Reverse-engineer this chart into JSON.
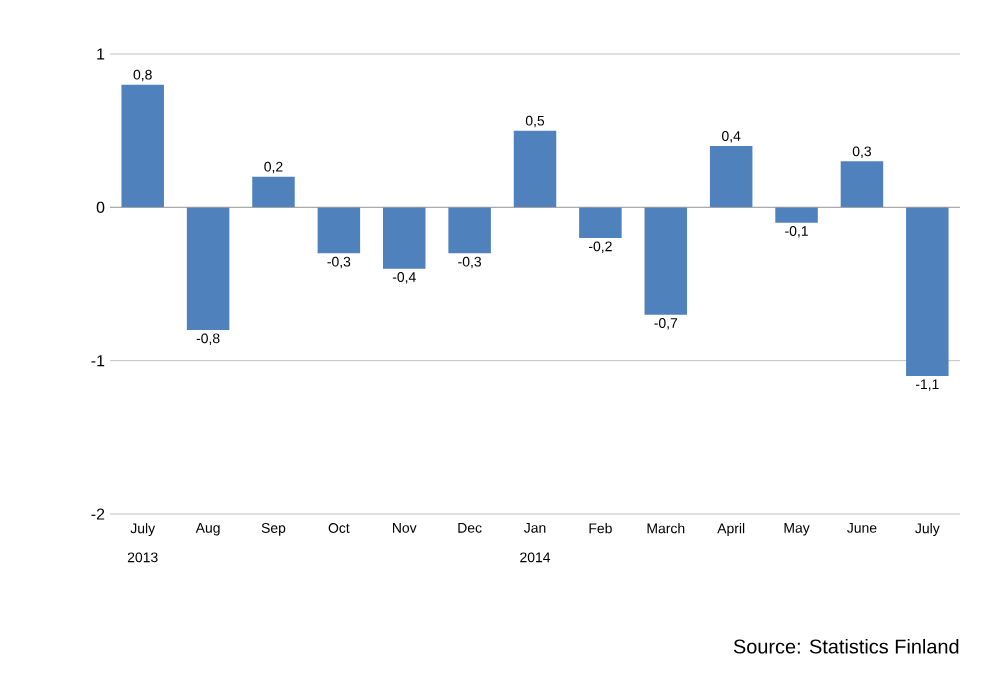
{
  "chart_data": {
    "type": "bar",
    "categories": [
      "July",
      "Aug",
      "Sep",
      "Oct",
      "Nov",
      "Dec",
      "Jan",
      "Feb",
      "March",
      "April",
      "May",
      "June",
      "July"
    ],
    "values": [
      0.8,
      -0.8,
      0.2,
      -0.3,
      -0.4,
      -0.3,
      0.5,
      -0.2,
      -0.7,
      0.4,
      -0.1,
      0.3,
      -1.1
    ],
    "value_labels": [
      "0,8",
      "-0,8",
      "0,2",
      "-0,3",
      "-0,4",
      "-0,3",
      "0,5",
      "-0,2",
      "-0,7",
      "0,4",
      "-0,1",
      "0,3",
      "-1,1"
    ],
    "color": "#4f81bd",
    "ylim": [
      -2,
      1
    ],
    "yticks": [
      -2,
      -1,
      0,
      1
    ],
    "grid": "y",
    "annotations": [
      "2013",
      "2014",
      "Source: Statistics Finland"
    ]
  }
}
